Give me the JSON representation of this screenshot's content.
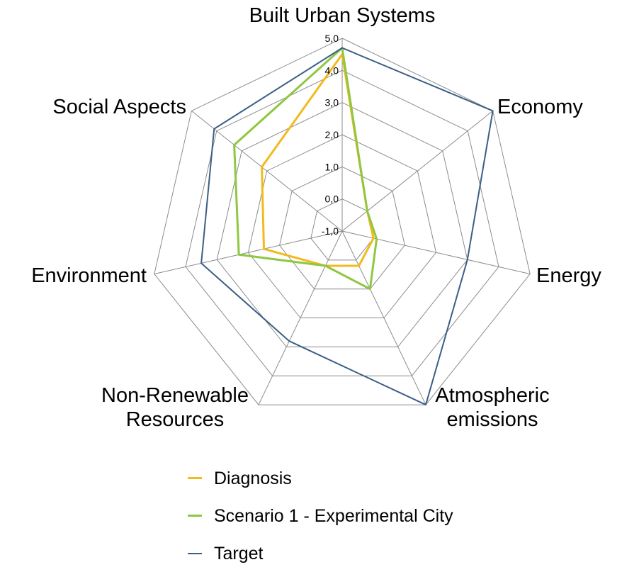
{
  "chart_data": {
    "type": "radar",
    "axes": [
      "Built Urban Systems",
      "Economy",
      "Energy",
      "Atmospheric emissions",
      "Non-Renewable Resources",
      "Environment",
      "Social Aspects"
    ],
    "axis_label_lines": [
      [
        "Built Urban Systems"
      ],
      [
        "Economy"
      ],
      [
        "Energy"
      ],
      [
        "Atmospheric",
        "emissions"
      ],
      [
        "Non-Renewable",
        "Resources"
      ],
      [
        "Environment"
      ],
      [
        "Social Aspects"
      ]
    ],
    "tick_labels": [
      "-1,0",
      "0,0",
      "1,0",
      "2,0",
      "3,0",
      "4,0",
      "5,0"
    ],
    "range": [
      -1,
      5
    ],
    "grid": true,
    "legend_position": "bottom",
    "series": [
      {
        "name": "Diagnosis",
        "color": "#F2BA1B",
        "values": [
          4.5,
          0.0,
          0.0,
          0.2,
          0.2,
          1.5,
          2.2
        ]
      },
      {
        "name": "Scenario 1 - Experimental City",
        "color": "#8FC742",
        "values": [
          4.7,
          0.0,
          0.1,
          1.0,
          0.2,
          2.3,
          3.3
        ]
      },
      {
        "name": "Target",
        "color": "#3A5F85",
        "values": [
          4.7,
          5.0,
          3.0,
          5.0,
          2.8,
          3.5,
          4.1
        ]
      }
    ]
  }
}
